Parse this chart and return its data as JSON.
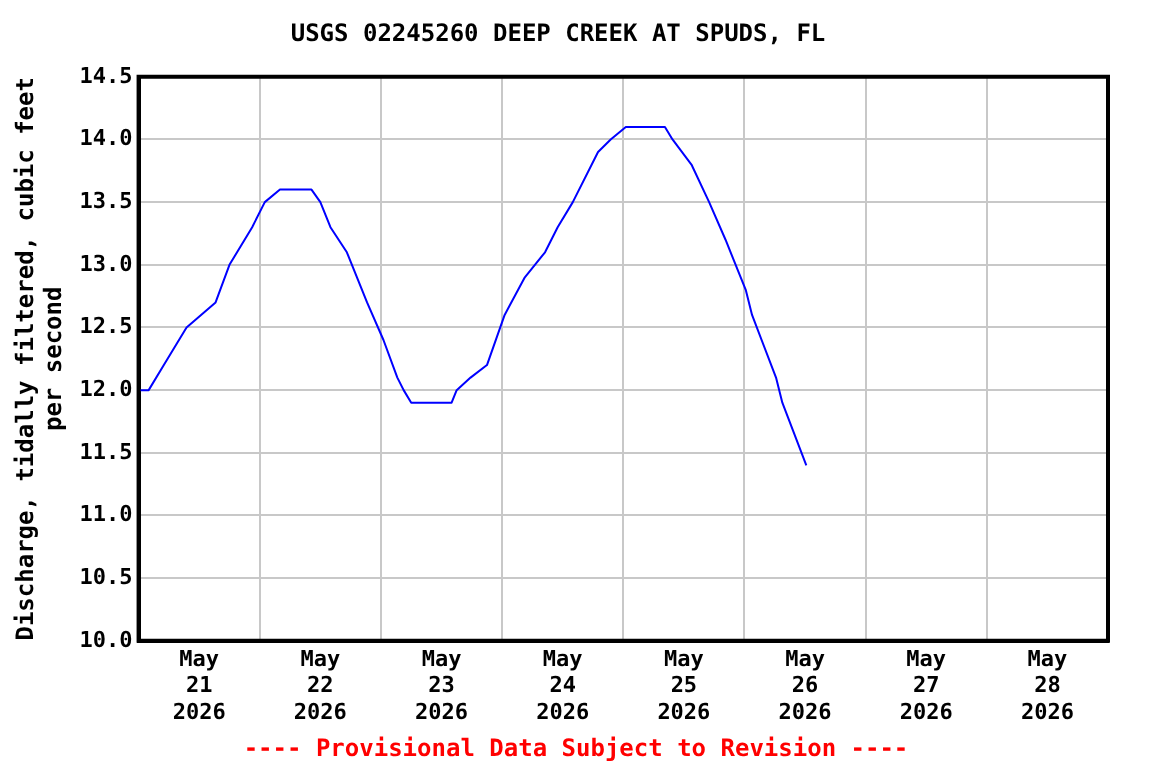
{
  "chart_data": {
    "type": "line",
    "title": "USGS 02245260 DEEP CREEK AT SPUDS, FL",
    "ylabel": "Discharge, tidally filtered, cubic feet per second",
    "annotations": [
      "---- Provisional Data Subject to Revision ----"
    ],
    "x": [
      "2026-05-21T00:00",
      "2026-05-21T02:00",
      "2026-05-21T05:00",
      "2026-05-21T09:30",
      "2026-05-21T15:15",
      "2026-05-21T18:00",
      "2026-05-21T22:30",
      "2026-05-22T01:00",
      "2026-05-22T04:00",
      "2026-05-22T10:15",
      "2026-05-22T12:00",
      "2026-05-22T14:00",
      "2026-05-22T17:15",
      "2026-05-22T21:15",
      "2026-05-23T00:30",
      "2026-05-23T03:15",
      "2026-05-23T04:30",
      "2026-05-23T06:00",
      "2026-05-23T14:00",
      "2026-05-23T15:00",
      "2026-05-23T17:45",
      "2026-05-23T21:00",
      "2026-05-24T00:30",
      "2026-05-24T04:30",
      "2026-05-24T08:30",
      "2026-05-24T11:00",
      "2026-05-24T14:00",
      "2026-05-24T19:00",
      "2026-05-24T21:30",
      "2026-05-25T00:30",
      "2026-05-25T08:15",
      "2026-05-25T09:45",
      "2026-05-25T13:30",
      "2026-05-25T17:00",
      "2026-05-25T20:15",
      "2026-05-26T00:15",
      "2026-05-26T01:30",
      "2026-05-26T06:15",
      "2026-05-26T07:30",
      "2026-05-26T12:15"
    ],
    "series": [
      {
        "color": "#0000ff",
        "values": [
          12.0,
          12.0,
          12.2,
          12.5,
          12.7,
          13.0,
          13.3,
          13.5,
          13.6,
          13.6,
          13.5,
          13.3,
          13.1,
          12.7,
          12.4,
          12.1,
          12.0,
          11.9,
          11.9,
          12.0,
          12.1,
          12.2,
          12.6,
          12.9,
          13.1,
          13.3,
          13.5,
          13.9,
          14.0,
          14.1,
          14.1,
          14.0,
          13.8,
          13.5,
          13.2,
          12.8,
          12.6,
          12.1,
          11.9,
          11.4
        ]
      }
    ],
    "xlim": [
      "2026-05-21",
      "2026-05-29"
    ],
    "xticks": [
      {
        "value": "2026-05-21T12:00",
        "label": "May\n21\n2026"
      },
      {
        "value": "2026-05-22",
        "label": null
      },
      {
        "value": "2026-05-22T12:00",
        "label": "May\n22\n2026"
      },
      {
        "value": "2026-05-23",
        "label": null
      },
      {
        "value": "2026-05-23T12:00",
        "label": "May\n23\n2026"
      },
      {
        "value": "2026-05-24",
        "label": null
      },
      {
        "value": "2026-05-24T12:00",
        "label": "May\n24\n2026"
      },
      {
        "value": "2026-05-25",
        "label": null
      },
      {
        "value": "2026-05-25T12:00",
        "label": "May\n25\n2026"
      },
      {
        "value": "2026-05-26",
        "label": null
      },
      {
        "value": "2026-05-26T12:00",
        "label": "May\n26\n2026"
      },
      {
        "value": "2026-05-27",
        "label": null
      },
      {
        "value": "2026-05-27T12:00",
        "label": "May\n27\n2026"
      },
      {
        "value": "2026-05-28",
        "label": null
      },
      {
        "value": "2026-05-28T12:00",
        "label": "May\n28\n2026"
      }
    ],
    "ylim": [
      10.0,
      14.5
    ],
    "yticks": [
      {
        "value": 10,
        "label": "10.0"
      },
      {
        "value": 10.5,
        "label": "10.5"
      },
      {
        "value": 11,
        "label": "11.0"
      },
      {
        "value": 11.5,
        "label": "11.5"
      },
      {
        "value": 12,
        "label": "12.0"
      },
      {
        "value": 12.5,
        "label": "12.5"
      },
      {
        "value": 13,
        "label": "13.0"
      },
      {
        "value": 13.5,
        "label": "13.5"
      },
      {
        "value": 14,
        "label": "14.0"
      },
      {
        "value": 14.5,
        "label": "14.5"
      }
    ],
    "grid": true,
    "legend": false,
    "marker": "none",
    "line_style": "solid"
  }
}
